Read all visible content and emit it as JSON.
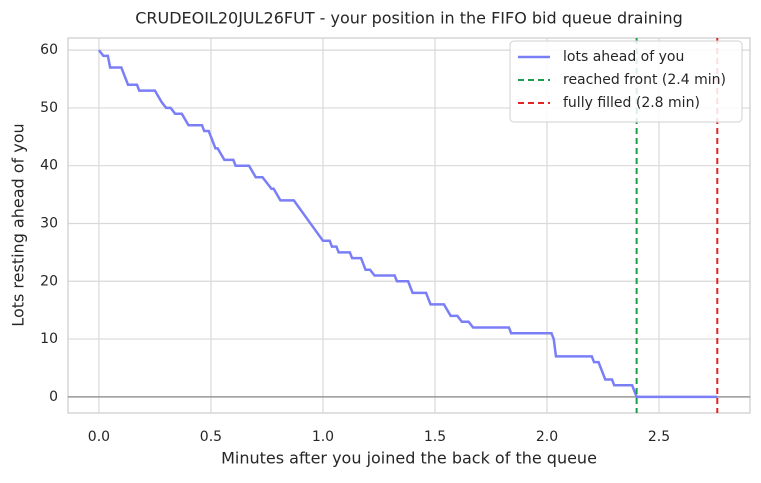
{
  "chart_data": {
    "type": "line",
    "title": "CRUDEOIL20JUL26FUT - your position in the FIFO bid queue draining",
    "x_label": "Minutes after you joined the back of the queue",
    "y_label": "Lots resting ahead of you",
    "x": [
      0,
      0.02,
      0.04,
      0.05,
      0.1,
      0.12,
      0.13,
      0.17,
      0.18,
      0.25,
      0.28,
      0.3,
      0.32,
      0.34,
      0.37,
      0.4,
      0.46,
      0.47,
      0.49,
      0.5,
      0.52,
      0.53,
      0.56,
      0.6,
      0.61,
      0.67,
      0.7,
      0.73,
      0.77,
      0.78,
      0.81,
      0.87,
      1.0,
      1.03,
      1.04,
      1.06,
      1.07,
      1.12,
      1.13,
      1.17,
      1.19,
      1.21,
      1.23,
      1.32,
      1.33,
      1.38,
      1.4,
      1.46,
      1.48,
      1.54,
      1.57,
      1.6,
      1.62,
      1.65,
      1.67,
      1.83,
      1.84,
      2.02,
      2.03,
      2.04,
      2.2,
      2.21,
      2.23,
      2.26,
      2.29,
      2.3,
      2.38,
      2.4,
      2.76
    ],
    "series": [
      {
        "name": "lots ahead of you",
        "color": "#7b7ff7",
        "values": [
          60,
          59,
          59,
          57,
          57,
          55,
          54,
          54,
          53,
          53,
          51,
          50,
          50,
          49,
          49,
          47,
          47,
          46,
          46,
          45,
          43,
          43,
          41,
          41,
          40,
          40,
          38,
          38,
          36,
          36,
          34,
          34,
          27,
          27,
          26,
          26,
          25,
          25,
          24,
          24,
          22,
          22,
          21,
          21,
          20,
          20,
          18,
          18,
          16,
          16,
          14,
          14,
          13,
          13,
          12,
          12,
          11,
          11,
          10,
          7,
          7,
          6,
          6,
          3,
          3,
          2,
          2,
          0,
          0
        ]
      }
    ],
    "vlines": [
      {
        "name": "reached front (2.4 min)",
        "color": "#1a9e4a",
        "x": 2.4
      },
      {
        "name": "fully filled (2.8 min)",
        "color": "#e02424",
        "x": 2.76
      }
    ],
    "hline": 0,
    "xlim": [
      -0.138,
      2.906
    ],
    "ylim": [
      -2.8,
      62.1
    ],
    "xticks": [
      {
        "value": 0,
        "label": "0.0"
      },
      0.5,
      {
        "value": 1,
        "label": "1.0"
      },
      1.5,
      {
        "value": 2,
        "label": "2.0"
      },
      2.5
    ],
    "yticks": [
      0,
      10,
      20,
      30,
      40,
      50,
      60
    ],
    "grid": true,
    "legend": "upper right"
  }
}
